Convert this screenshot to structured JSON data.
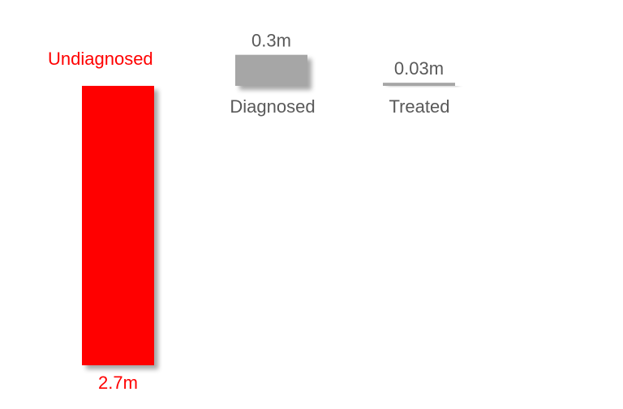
{
  "chart_data": {
    "type": "bar",
    "categories": [
      "Undiagnosed",
      "Diagnosed",
      "Treated"
    ],
    "values": [
      -2.7,
      0.3,
      0.03
    ],
    "value_labels": [
      "2.7m",
      "0.3m",
      "0.03m"
    ],
    "title": "",
    "xlabel": "",
    "ylabel": "",
    "ylim": [
      -2.7,
      0.3
    ],
    "grid": false,
    "legend": "none",
    "colors": [
      "#ff0000",
      "#a6a6a6",
      "#a6a6a6"
    ],
    "label_colors": [
      "#ff0000",
      "#595959",
      "#595959"
    ]
  }
}
